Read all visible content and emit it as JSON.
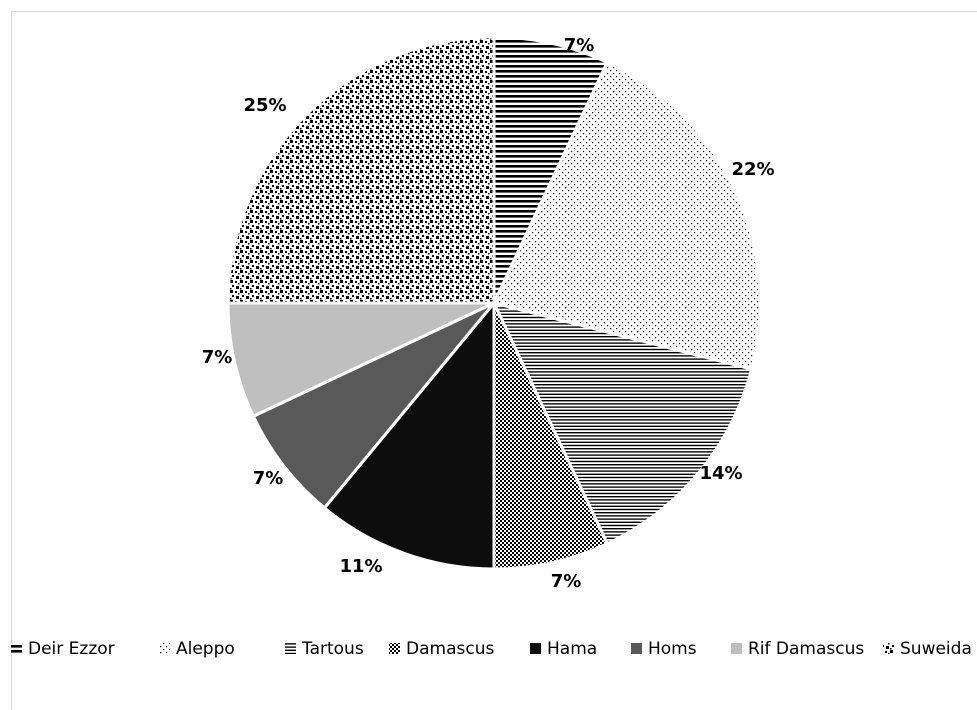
{
  "chart_data": {
    "type": "pie",
    "title": "",
    "slices": [
      {
        "name": "Deir Ezzor",
        "value": 7,
        "label": "7%",
        "pattern": "hstripes-bold"
      },
      {
        "name": "Aleppo",
        "value": 22,
        "label": "22%",
        "pattern": "dots-sparse"
      },
      {
        "name": "Tartous",
        "value": 14,
        "label": "14%",
        "pattern": "hstripes-fine"
      },
      {
        "name": "Damascus",
        "value": 7,
        "label": "7%",
        "pattern": "checker"
      },
      {
        "name": "Hama",
        "value": 11,
        "label": "11%",
        "color": "#0d0d0d"
      },
      {
        "name": "Homs",
        "value": 7,
        "label": "7%",
        "color": "#595959"
      },
      {
        "name": "Rif Damascus",
        "value": 7,
        "label": "7%",
        "color": "#bfbfbf"
      },
      {
        "name": "Suweida",
        "value": 25,
        "label": "25%",
        "pattern": "confetti"
      }
    ],
    "legend_position": "bottom",
    "start_angle": "12 o'clock, clockwise",
    "colors": {
      "border": "#ffffff",
      "frame": "#d9d9d9"
    }
  }
}
